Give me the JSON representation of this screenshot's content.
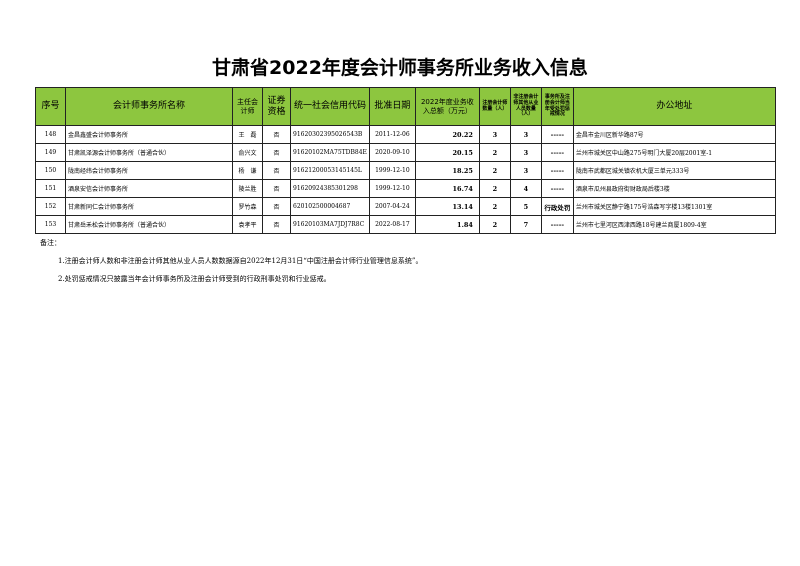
{
  "title": "甘肃省2022年度会计师事务所业务收入信息",
  "table": {
    "headers": [
      "序号",
      "会计师事务所名称",
      "主任会计师",
      "证券资格",
      "统一社会信用代码",
      "批准日期",
      "2022年度业务收入总额（万元）",
      "注册会计师数量（人）",
      "非注册会计师其他从业人员数量（人）",
      "事务所及注册会计师当年受处罚惩戒情况",
      "办公地址"
    ],
    "rows": [
      [
        "148",
        "金昌鑫盛会计师事务所",
        "王　磊",
        "否",
        "91620302395026543B",
        "2011-12-06",
        "20.22",
        "3",
        "3",
        "-----",
        "金昌市金川区新华路87号"
      ],
      [
        "149",
        "甘肃凯泽源会计师事务所（普通合伙）",
        "俞兴文",
        "否",
        "91620102MA75TDB84E",
        "2020-09-10",
        "20.15",
        "2",
        "3",
        "-----",
        "兰州市城关区中山路275号明门大厦20层2001室-1"
      ],
      [
        "150",
        "陇南经纬会计师事务所",
        "杨　谦",
        "否",
        "91621200053145145L",
        "1999-12-10",
        "18.25",
        "2",
        "3",
        "-----",
        "陇南市武都区城关镇农机大厦三单元333号"
      ],
      [
        "151",
        "酒泉安信会计师事务所",
        "陵兰胜",
        "否",
        "91620924385301298",
        "1999-12-10",
        "16.74",
        "2",
        "4",
        "-----",
        "酒泉市瓜州县政府街财政局后楼3楼"
      ],
      [
        "152",
        "甘肃新同仁会计师事务所",
        "罗竹森",
        "否",
        "620102500004687",
        "2007-04-24",
        "13.14",
        "2",
        "5",
        "行政处罚",
        "兰州市城关区静宁路175号浩森写字楼13楼1301室"
      ],
      [
        "153",
        "甘肃岳禾松会计师事务所（普通合伙）",
        "袁孝平",
        "否",
        "91620103MA7JDJ7R8C",
        "2022-08-17",
        "1.84",
        "2",
        "7",
        "-----",
        "兰州市七里河区西津西路18号建兰商厦1809-4室"
      ]
    ]
  },
  "notes": {
    "label": "备注：",
    "items": [
      "1.注册会计师人数和非注册会计师其他从业人员人数数据源自2022年12月31日“中国注册会计师行业管理信息系统”。",
      "2.处罚惩戒情况只披露当年会计师事务所及注册会计师受到的行政刑事处罚和行业惩戒。"
    ]
  },
  "colors": {
    "header_bg": "#8dc63f"
  }
}
